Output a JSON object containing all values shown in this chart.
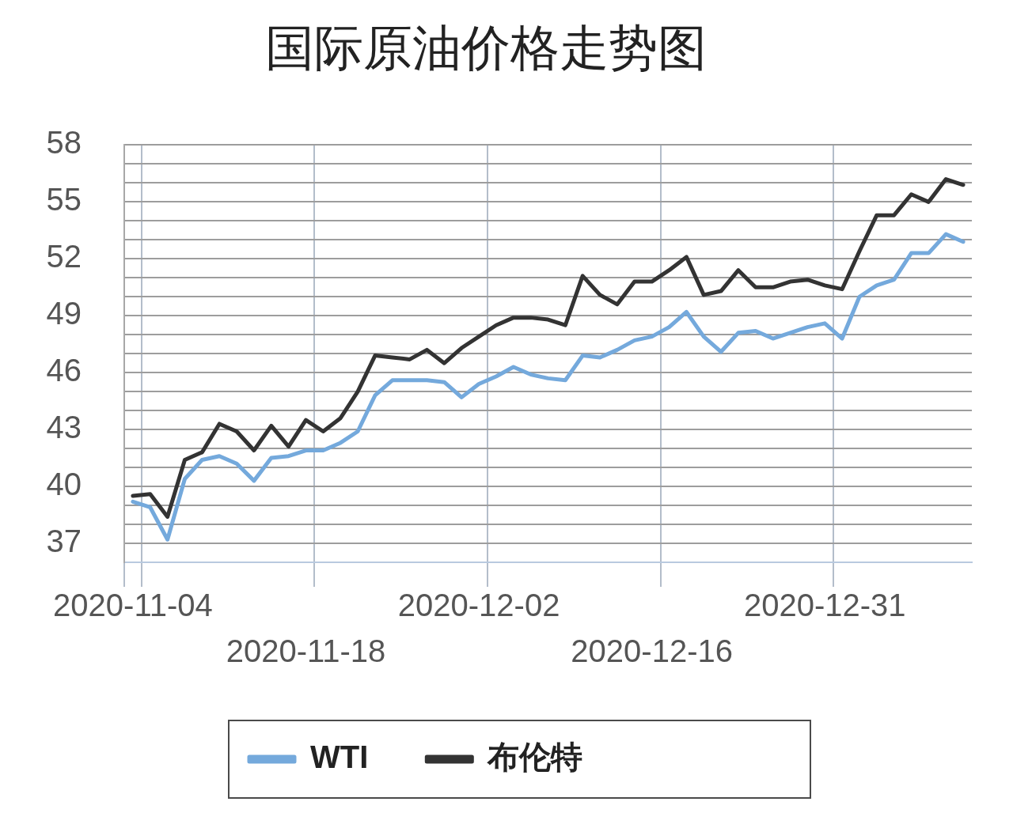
{
  "chart_data": {
    "type": "line",
    "title": "国际原油价格走势图",
    "categories": [
      "2020-11-04",
      null,
      null,
      null,
      null,
      null,
      null,
      null,
      null,
      null,
      "2020-11-18",
      null,
      null,
      null,
      null,
      null,
      null,
      null,
      null,
      null,
      "2020-12-02",
      null,
      null,
      null,
      null,
      null,
      null,
      null,
      null,
      null,
      "2020-12-16",
      null,
      null,
      null,
      null,
      null,
      null,
      null,
      null,
      null,
      "2020-12-31",
      null,
      null,
      null,
      null,
      null,
      null,
      null,
      null
    ],
    "series": [
      {
        "name": "WTI",
        "color": "#74a9dc",
        "values": [
          39.2,
          38.9,
          37.2,
          40.4,
          41.4,
          41.6,
          41.2,
          40.3,
          41.5,
          41.6,
          41.9,
          41.9,
          42.3,
          42.9,
          44.8,
          45.6,
          45.6,
          45.6,
          45.5,
          44.7,
          45.4,
          45.8,
          46.3,
          45.9,
          45.7,
          45.6,
          46.9,
          46.8,
          47.2,
          47.7,
          47.9,
          48.4,
          49.2,
          47.9,
          47.1,
          48.1,
          48.2,
          47.8,
          48.1,
          48.4,
          48.6,
          47.8,
          50.0,
          50.6,
          50.9,
          52.3,
          52.3,
          53.3,
          52.9
        ]
      },
      {
        "name": "布伦特",
        "color": "#333333",
        "values": [
          39.5,
          39.6,
          38.4,
          41.4,
          41.8,
          43.3,
          42.9,
          41.9,
          43.2,
          42.1,
          43.5,
          42.9,
          43.6,
          45.0,
          46.9,
          46.8,
          46.7,
          47.2,
          46.5,
          47.3,
          47.9,
          48.5,
          48.9,
          48.9,
          48.8,
          48.5,
          51.1,
          50.1,
          49.6,
          50.8,
          50.8,
          51.4,
          52.1,
          50.1,
          50.3,
          51.4,
          50.5,
          50.5,
          50.8,
          50.9,
          50.6,
          50.4,
          52.4,
          54.3,
          54.3,
          55.4,
          55.0,
          56.2,
          55.9
        ]
      }
    ],
    "ylim": [
      36,
      58
    ],
    "yticks": [
      {
        "value": 36,
        "label": null
      },
      37,
      {
        "value": 38,
        "label": null
      },
      {
        "value": 39,
        "label": null
      },
      40,
      {
        "value": 41,
        "label": null
      },
      {
        "value": 42,
        "label": null
      },
      43,
      {
        "value": 44,
        "label": null
      },
      {
        "value": 45,
        "label": null
      },
      46,
      {
        "value": 47,
        "label": null
      },
      {
        "value": 48,
        "label": null
      },
      49,
      {
        "value": 50,
        "label": null
      },
      {
        "value": 51,
        "label": null
      },
      52,
      {
        "value": 53,
        "label": null
      },
      {
        "value": 54,
        "label": null
      },
      55,
      {
        "value": 56,
        "label": null
      },
      {
        "value": 57,
        "label": null
      },
      58
    ],
    "grid": true,
    "legend": "bottom",
    "marker": "none",
    "line_style": "solid"
  }
}
